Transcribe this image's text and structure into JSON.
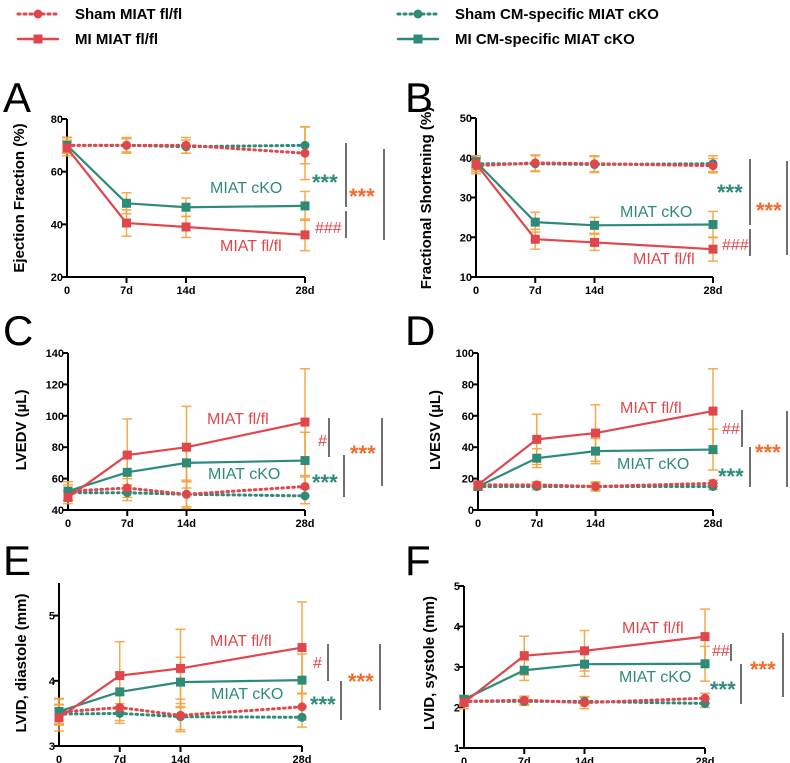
{
  "colors": {
    "fl": "#e0474c",
    "cko": "#2e8b7a",
    "err": "#f5a33a",
    "stars": "#f26b2a",
    "axis": "#000000"
  },
  "legend": [
    {
      "label": "Sham MIAT fl/fl",
      "color": "#e0474c",
      "dash": true,
      "marker": "circle"
    },
    {
      "label": "MI MIAT fl/fl",
      "color": "#e0474c",
      "dash": false,
      "marker": "square"
    },
    {
      "label": "Sham CM-specific MIAT cKO",
      "color": "#2e8b7a",
      "dash": true,
      "marker": "circle"
    },
    {
      "label": "MI CM-specific MIAT cKO",
      "color": "#2e8b7a",
      "dash": false,
      "marker": "square"
    }
  ],
  "chart_data": [
    {
      "panel": "A",
      "type": "line",
      "ylabel": "Ejection Fraction (%)",
      "x": [
        0,
        7,
        14,
        28
      ],
      "xticks": [
        "0",
        "7d",
        "14d",
        "28d"
      ],
      "ylim": [
        20,
        80
      ],
      "yticks": [
        "20",
        "40",
        "60",
        "80"
      ],
      "series": [
        {
          "name": "Sham MIAT fl/fl",
          "values": [
            70,
            70,
            70,
            67
          ],
          "err": [
            3,
            3,
            3,
            10
          ]
        },
        {
          "name": "Sham CM-specific MIAT cKO",
          "values": [
            70,
            70,
            69.5,
            70
          ],
          "err": [
            3,
            2.5,
            2.5,
            7
          ]
        },
        {
          "name": "MI MIAT fl/fl",
          "values": [
            69,
            40.5,
            39,
            36
          ],
          "err": [
            3,
            5,
            4,
            6
          ]
        },
        {
          "name": "MI CM-specific MIAT cKO",
          "values": [
            70,
            48,
            46.5,
            47
          ],
          "err": [
            3,
            4,
            3.5,
            5.5
          ]
        }
      ],
      "annotations": {
        "cko_label": "MIAT cKO",
        "fl_label": "MIAT fl/fl",
        "cko_sig": "***",
        "fl_sig": "###",
        "overall_sig": "***"
      }
    },
    {
      "panel": "B",
      "type": "line",
      "ylabel": "Fractional Shortening (%)",
      "x": [
        0,
        7,
        14,
        28
      ],
      "xticks": [
        "0",
        "7d",
        "14d",
        "28d"
      ],
      "ylim": [
        10,
        50
      ],
      "yticks": [
        "10",
        "20",
        "30",
        "40",
        "50"
      ],
      "series": [
        {
          "name": "Sham MIAT fl/fl",
          "values": [
            38,
            38.7,
            38.5,
            38
          ],
          "err": [
            2,
            2,
            2,
            1.8
          ]
        },
        {
          "name": "Sham CM-specific MIAT cKO",
          "values": [
            38.5,
            38.5,
            38.3,
            38.5
          ],
          "err": [
            2,
            2,
            2,
            2
          ]
        },
        {
          "name": "MI MIAT fl/fl",
          "values": [
            38.5,
            19.5,
            18.7,
            17
          ],
          "err": [
            1.5,
            2.5,
            2,
            3
          ]
        },
        {
          "name": "MI CM-specific MIAT cKO",
          "values": [
            39,
            23.8,
            23,
            23.2
          ],
          "err": [
            1.5,
            2.5,
            2,
            3.3
          ]
        }
      ],
      "annotations": {
        "cko_label": "MIAT cKO",
        "fl_label": "MIAT fl/fl",
        "cko_sig": "***",
        "fl_sig": "###",
        "overall_sig": "***"
      }
    },
    {
      "panel": "C",
      "type": "line",
      "ylabel": "LVEDV (µL)",
      "x": [
        0,
        7,
        14,
        28
      ],
      "xticks": [
        "0",
        "7d",
        "14d",
        "28d"
      ],
      "ylim": [
        40,
        140
      ],
      "yticks": [
        "40",
        "60",
        "80",
        "100",
        "120",
        "140"
      ],
      "series": [
        {
          "name": "Sham MIAT fl/fl",
          "values": [
            52,
            54,
            50,
            55
          ],
          "err": [
            6,
            6,
            8,
            6
          ]
        },
        {
          "name": "Sham CM-specific MIAT cKO",
          "values": [
            51,
            51,
            50,
            49
          ],
          "err": [
            5,
            5,
            9,
            5
          ]
        },
        {
          "name": "MI MIAT fl/fl",
          "values": [
            48,
            75,
            80,
            96
          ],
          "err": [
            4,
            23,
            26,
            34
          ]
        },
        {
          "name": "MI CM-specific MIAT cKO",
          "values": [
            52,
            64,
            70,
            71.5
          ],
          "err": [
            6,
            12,
            12,
            18
          ]
        }
      ],
      "annotations": {
        "cko_label": "MIAT cKO",
        "fl_label": "MIAT fl/fl",
        "cko_sig": "***",
        "fl_sig": "#",
        "overall_sig": "***"
      }
    },
    {
      "panel": "D",
      "type": "line",
      "ylabel": "LVESV (µL)",
      "x": [
        0,
        7,
        14,
        28
      ],
      "xticks": [
        "0",
        "7d",
        "14d",
        "28d"
      ],
      "ylim": [
        0,
        100
      ],
      "yticks": [
        "0",
        "20",
        "40",
        "60",
        "80",
        "100"
      ],
      "series": [
        {
          "name": "Sham MIAT fl/fl",
          "values": [
            16,
            16,
            15,
            17
          ],
          "err": [
            2,
            2,
            3,
            2
          ]
        },
        {
          "name": "Sham CM-specific MIAT cKO",
          "values": [
            15,
            15,
            15,
            15
          ],
          "err": [
            2,
            2,
            2,
            2
          ]
        },
        {
          "name": "MI MIAT fl/fl",
          "values": [
            16,
            45,
            49,
            63
          ],
          "err": [
            2,
            16,
            18,
            27
          ]
        },
        {
          "name": "MI CM-specific MIAT cKO",
          "values": [
            15,
            33,
            37.5,
            38.5
          ],
          "err": [
            2,
            6,
            8,
            13
          ]
        }
      ],
      "annotations": {
        "cko_label": "MIAT cKO",
        "fl_label": "MIAT fl/fl",
        "cko_sig": "***",
        "fl_sig": "##",
        "overall_sig": "***"
      }
    },
    {
      "panel": "E",
      "type": "line",
      "ylabel": "LVID, diastole (mm)",
      "x": [
        0,
        7,
        14,
        28
      ],
      "xticks": [
        "0",
        "7d",
        "14d",
        "28d"
      ],
      "ylim": [
        3,
        5.5
      ],
      "yticks": [
        "3",
        "4",
        "5"
      ],
      "series": [
        {
          "name": "Sham MIAT fl/fl",
          "values": [
            3.52,
            3.59,
            3.47,
            3.6
          ],
          "err": [
            0.2,
            0.2,
            0.25,
            0.2
          ]
        },
        {
          "name": "Sham CM-specific MIAT cKO",
          "values": [
            3.49,
            3.5,
            3.45,
            3.44
          ],
          "err": [
            0.15,
            0.15,
            0.2,
            0.15
          ]
        },
        {
          "name": "MI MIAT fl/fl",
          "values": [
            3.43,
            4.08,
            4.19,
            4.51
          ],
          "err": [
            0.2,
            0.52,
            0.6,
            0.7
          ]
        },
        {
          "name": "MI CM-specific MIAT cKO",
          "values": [
            3.53,
            3.83,
            3.98,
            4.01
          ],
          "err": [
            0.2,
            0.3,
            0.38,
            0.4
          ]
        }
      ],
      "annotations": {
        "cko_label": "MIAT cKO",
        "fl_label": "MIAT fl/fl",
        "cko_sig": "***",
        "fl_sig": "#",
        "overall_sig": "***"
      }
    },
    {
      "panel": "F",
      "type": "line",
      "ylabel": "LVID, systole (mm)",
      "x": [
        0,
        7,
        14,
        28
      ],
      "xticks": [
        "0",
        "7d",
        "14d",
        "28d"
      ],
      "ylim": [
        1,
        5
      ],
      "yticks": [
        "1",
        "2",
        "3",
        "4",
        "5"
      ],
      "series": [
        {
          "name": "Sham MIAT fl/fl",
          "values": [
            2.15,
            2.18,
            2.12,
            2.23
          ],
          "err": [
            0.12,
            0.1,
            0.15,
            0.12
          ]
        },
        {
          "name": "Sham CM-specific MIAT cKO",
          "values": [
            2.15,
            2.15,
            2.15,
            2.1
          ],
          "err": [
            0.1,
            0.1,
            0.1,
            0.1
          ]
        },
        {
          "name": "MI MIAT fl/fl",
          "values": [
            2.12,
            3.28,
            3.4,
            3.75
          ],
          "err": [
            0.15,
            0.48,
            0.5,
            0.68
          ]
        },
        {
          "name": "MI CM-specific MIAT cKO",
          "values": [
            2.2,
            2.92,
            3.07,
            3.08
          ],
          "err": [
            0.1,
            0.25,
            0.3,
            0.43
          ]
        }
      ],
      "annotations": {
        "cko_label": "MIAT cKO",
        "fl_label": "MIAT fl/fl",
        "cko_sig": "***",
        "fl_sig": "##",
        "overall_sig": "***"
      }
    }
  ]
}
